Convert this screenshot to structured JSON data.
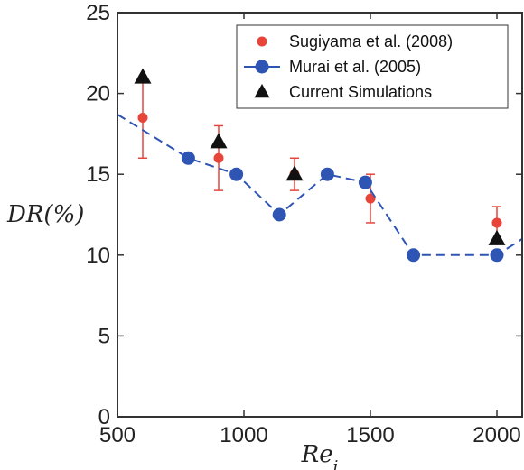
{
  "chart_data": {
    "type": "scatter",
    "xlabel": "Re_i",
    "ylabel": "DR(%)",
    "xlim": [
      500,
      2100
    ],
    "ylim": [
      0,
      25
    ],
    "xticks": [
      500,
      1000,
      1500,
      2000
    ],
    "yticks": [
      0,
      5,
      10,
      15,
      20,
      25
    ],
    "grid": false,
    "legend_position": "top-right",
    "series": [
      {
        "name": "Sugiyama et al. (2008)",
        "marker": "circle",
        "color": "#e8443a",
        "error_bars": true,
        "points": [
          {
            "x": 600,
            "y": 18.5,
            "err_low": 16,
            "err_high": 21
          },
          {
            "x": 900,
            "y": 16,
            "err_low": 14,
            "err_high": 18
          },
          {
            "x": 1200,
            "y": 15,
            "err_low": 14,
            "err_high": 16
          },
          {
            "x": 1500,
            "y": 13.5,
            "err_low": 12,
            "err_high": 15
          },
          {
            "x": 2000,
            "y": 12,
            "err_low": 11,
            "err_high": 13
          }
        ]
      },
      {
        "name": "Murai et al. (2005)",
        "marker": "circle",
        "line": "dashed",
        "color": "#2f55b4",
        "points": [
          {
            "x": 780,
            "y": 16
          },
          {
            "x": 970,
            "y": 15
          },
          {
            "x": 1140,
            "y": 12.5
          },
          {
            "x": 1330,
            "y": 15
          },
          {
            "x": 1480,
            "y": 14.5
          },
          {
            "x": 1670,
            "y": 10
          },
          {
            "x": 2000,
            "y": 10
          }
        ],
        "dashed_line": [
          {
            "x": 500,
            "y": 18.7
          },
          {
            "x": 780,
            "y": 16
          },
          {
            "x": 970,
            "y": 15
          },
          {
            "x": 1140,
            "y": 12.5
          },
          {
            "x": 1330,
            "y": 15
          },
          {
            "x": 1480,
            "y": 14.5
          },
          {
            "x": 1670,
            "y": 10
          },
          {
            "x": 2000,
            "y": 10
          },
          {
            "x": 2100,
            "y": 11
          }
        ]
      },
      {
        "name": "Current Simulations",
        "marker": "triangle",
        "color": "#111111",
        "points": [
          {
            "x": 600,
            "y": 21
          },
          {
            "x": 900,
            "y": 17
          },
          {
            "x": 1200,
            "y": 15
          },
          {
            "x": 2000,
            "y": 11
          }
        ]
      }
    ]
  }
}
